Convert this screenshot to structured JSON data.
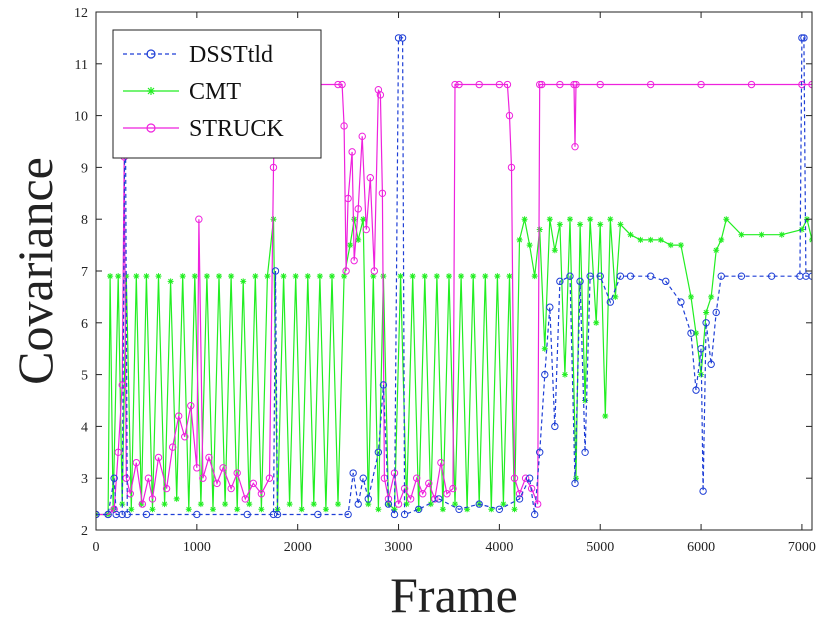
{
  "chart_data": {
    "type": "line",
    "title": "",
    "xlabel": "Frame",
    "ylabel": "Covariance",
    "xlim": [
      0,
      7100
    ],
    "ylim": [
      2,
      12
    ],
    "x_ticks": [
      0,
      1000,
      2000,
      3000,
      4000,
      5000,
      6000,
      7000
    ],
    "y_ticks": [
      2,
      3,
      4,
      5,
      6,
      7,
      8,
      9,
      10,
      11,
      12
    ],
    "legend_position": "top-left",
    "grid": false,
    "series": [
      {
        "name": "DSSTtld",
        "color": "#1f3fd6",
        "marker": "circle",
        "linestyle": "dashed",
        "points": [
          [
            0,
            2.3
          ],
          [
            120,
            2.3
          ],
          [
            180,
            3.0
          ],
          [
            200,
            2.3
          ],
          [
            260,
            2.3
          ],
          [
            290,
            11.0
          ],
          [
            310,
            2.3
          ],
          [
            500,
            2.3
          ],
          [
            1000,
            2.3
          ],
          [
            1500,
            2.3
          ],
          [
            1760,
            2.3
          ],
          [
            1780,
            7.0
          ],
          [
            1800,
            2.3
          ],
          [
            2200,
            2.3
          ],
          [
            2500,
            2.3
          ],
          [
            2550,
            3.1
          ],
          [
            2600,
            2.5
          ],
          [
            2650,
            3.0
          ],
          [
            2700,
            2.6
          ],
          [
            2800,
            3.5
          ],
          [
            2850,
            4.8
          ],
          [
            2900,
            2.5
          ],
          [
            2960,
            2.3
          ],
          [
            3000,
            11.5
          ],
          [
            3040,
            11.5
          ],
          [
            3060,
            2.3
          ],
          [
            3200,
            2.4
          ],
          [
            3400,
            2.6
          ],
          [
            3600,
            2.4
          ],
          [
            3800,
            2.5
          ],
          [
            4000,
            2.4
          ],
          [
            4200,
            2.6
          ],
          [
            4300,
            3.0
          ],
          [
            4350,
            2.3
          ],
          [
            4400,
            3.5
          ],
          [
            4450,
            5.0
          ],
          [
            4500,
            6.3
          ],
          [
            4550,
            4.0
          ],
          [
            4600,
            6.8
          ],
          [
            4700,
            6.9
          ],
          [
            4750,
            2.9
          ],
          [
            4800,
            6.8
          ],
          [
            4850,
            3.5
          ],
          [
            4900,
            6.9
          ],
          [
            5000,
            6.9
          ],
          [
            5100,
            6.4
          ],
          [
            5200,
            6.9
          ],
          [
            5300,
            6.9
          ],
          [
            5500,
            6.9
          ],
          [
            5650,
            6.8
          ],
          [
            5800,
            6.4
          ],
          [
            5900,
            5.8
          ],
          [
            5950,
            4.7
          ],
          [
            6000,
            5.5
          ],
          [
            6020,
            2.75
          ],
          [
            6050,
            6.0
          ],
          [
            6100,
            5.2
          ],
          [
            6150,
            6.2
          ],
          [
            6200,
            6.9
          ],
          [
            6400,
            6.9
          ],
          [
            6700,
            6.9
          ],
          [
            6980,
            6.9
          ],
          [
            7000,
            11.5
          ],
          [
            7020,
            11.5
          ],
          [
            7040,
            6.9
          ],
          [
            7100,
            6.9
          ]
        ]
      },
      {
        "name": "CMT",
        "color": "#22ee22",
        "marker": "asterisk",
        "linestyle": "solid",
        "points": [
          [
            0,
            2.3
          ],
          [
            120,
            2.3
          ],
          [
            140,
            6.9
          ],
          [
            170,
            2.4
          ],
          [
            220,
            6.9
          ],
          [
            260,
            2.5
          ],
          [
            300,
            6.9
          ],
          [
            350,
            2.4
          ],
          [
            400,
            6.9
          ],
          [
            450,
            2.5
          ],
          [
            500,
            6.9
          ],
          [
            560,
            2.4
          ],
          [
            620,
            6.9
          ],
          [
            680,
            2.5
          ],
          [
            740,
            6.8
          ],
          [
            800,
            2.6
          ],
          [
            860,
            6.9
          ],
          [
            920,
            2.4
          ],
          [
            980,
            6.9
          ],
          [
            1040,
            2.5
          ],
          [
            1100,
            6.9
          ],
          [
            1160,
            2.4
          ],
          [
            1220,
            6.9
          ],
          [
            1280,
            2.5
          ],
          [
            1340,
            6.9
          ],
          [
            1400,
            2.4
          ],
          [
            1460,
            6.8
          ],
          [
            1520,
            2.5
          ],
          [
            1580,
            6.9
          ],
          [
            1640,
            2.4
          ],
          [
            1700,
            6.9
          ],
          [
            1760,
            8.0
          ],
          [
            1800,
            2.4
          ],
          [
            1860,
            6.9
          ],
          [
            1920,
            2.5
          ],
          [
            1980,
            6.9
          ],
          [
            2040,
            2.4
          ],
          [
            2100,
            6.9
          ],
          [
            2160,
            2.5
          ],
          [
            2220,
            6.9
          ],
          [
            2280,
            2.4
          ],
          [
            2340,
            6.9
          ],
          [
            2400,
            2.5
          ],
          [
            2460,
            6.9
          ],
          [
            2520,
            7.5
          ],
          [
            2560,
            8.0
          ],
          [
            2600,
            7.6
          ],
          [
            2650,
            8.0
          ],
          [
            2700,
            2.5
          ],
          [
            2750,
            6.9
          ],
          [
            2800,
            2.4
          ],
          [
            2850,
            6.9
          ],
          [
            2900,
            2.5
          ],
          [
            2960,
            2.4
          ],
          [
            3020,
            6.9
          ],
          [
            3080,
            2.5
          ],
          [
            3140,
            6.9
          ],
          [
            3200,
            2.4
          ],
          [
            3260,
            6.9
          ],
          [
            3320,
            2.5
          ],
          [
            3380,
            6.9
          ],
          [
            3440,
            2.4
          ],
          [
            3500,
            6.9
          ],
          [
            3560,
            2.5
          ],
          [
            3620,
            6.9
          ],
          [
            3680,
            2.4
          ],
          [
            3740,
            6.9
          ],
          [
            3800,
            2.5
          ],
          [
            3860,
            6.9
          ],
          [
            3920,
            2.4
          ],
          [
            3980,
            6.9
          ],
          [
            4040,
            2.5
          ],
          [
            4100,
            6.9
          ],
          [
            4150,
            2.4
          ],
          [
            4200,
            7.6
          ],
          [
            4250,
            8.0
          ],
          [
            4300,
            7.5
          ],
          [
            4350,
            6.9
          ],
          [
            4400,
            7.8
          ],
          [
            4450,
            5.5
          ],
          [
            4500,
            8.0
          ],
          [
            4550,
            7.4
          ],
          [
            4600,
            7.9
          ],
          [
            4650,
            5.0
          ],
          [
            4700,
            8.0
          ],
          [
            4760,
            3.0
          ],
          [
            4800,
            7.9
          ],
          [
            4850,
            4.5
          ],
          [
            4900,
            8.0
          ],
          [
            4960,
            6.0
          ],
          [
            5000,
            7.9
          ],
          [
            5050,
            4.2
          ],
          [
            5100,
            8.0
          ],
          [
            5150,
            6.5
          ],
          [
            5200,
            7.9
          ],
          [
            5300,
            7.7
          ],
          [
            5400,
            7.6
          ],
          [
            5500,
            7.6
          ],
          [
            5600,
            7.6
          ],
          [
            5700,
            7.5
          ],
          [
            5800,
            7.5
          ],
          [
            5900,
            6.5
          ],
          [
            5950,
            5.8
          ],
          [
            6000,
            5.0
          ],
          [
            6050,
            6.2
          ],
          [
            6100,
            6.5
          ],
          [
            6150,
            7.4
          ],
          [
            6200,
            7.6
          ],
          [
            6250,
            8.0
          ],
          [
            6400,
            7.7
          ],
          [
            6600,
            7.7
          ],
          [
            6800,
            7.7
          ],
          [
            7000,
            7.8
          ],
          [
            7050,
            8.0
          ],
          [
            7100,
            7.6
          ]
        ]
      },
      {
        "name": "STRUCK",
        "color": "#ee22dd",
        "marker": "circle",
        "linestyle": "solid",
        "points": [
          [
            0,
            2.3
          ],
          [
            120,
            2.3
          ],
          [
            180,
            2.4
          ],
          [
            220,
            3.5
          ],
          [
            260,
            4.8
          ],
          [
            280,
            9.2
          ],
          [
            300,
            3.0
          ],
          [
            340,
            2.7
          ],
          [
            400,
            3.3
          ],
          [
            460,
            2.5
          ],
          [
            520,
            3.0
          ],
          [
            560,
            2.6
          ],
          [
            620,
            3.4
          ],
          [
            700,
            2.8
          ],
          [
            760,
            3.6
          ],
          [
            820,
            4.2
          ],
          [
            880,
            3.8
          ],
          [
            940,
            4.4
          ],
          [
            1000,
            3.2
          ],
          [
            1020,
            8.0
          ],
          [
            1060,
            3.0
          ],
          [
            1120,
            3.4
          ],
          [
            1200,
            2.9
          ],
          [
            1260,
            3.2
          ],
          [
            1340,
            2.8
          ],
          [
            1400,
            3.1
          ],
          [
            1480,
            2.6
          ],
          [
            1560,
            2.9
          ],
          [
            1640,
            2.7
          ],
          [
            1720,
            3.0
          ],
          [
            1760,
            9.0
          ],
          [
            1780,
            10.6
          ],
          [
            1800,
            10.6
          ],
          [
            2000,
            10.6
          ],
          [
            2200,
            10.6
          ],
          [
            2400,
            10.6
          ],
          [
            2440,
            10.6
          ],
          [
            2460,
            9.8
          ],
          [
            2480,
            7.0
          ],
          [
            2500,
            8.4
          ],
          [
            2540,
            9.3
          ],
          [
            2560,
            7.2
          ],
          [
            2600,
            8.2
          ],
          [
            2640,
            9.6
          ],
          [
            2680,
            7.8
          ],
          [
            2720,
            8.8
          ],
          [
            2760,
            7.0
          ],
          [
            2800,
            10.5
          ],
          [
            2820,
            10.4
          ],
          [
            2840,
            8.5
          ],
          [
            2860,
            3.0
          ],
          [
            2900,
            2.6
          ],
          [
            2960,
            3.1
          ],
          [
            3000,
            2.5
          ],
          [
            3060,
            2.8
          ],
          [
            3120,
            2.6
          ],
          [
            3180,
            3.0
          ],
          [
            3240,
            2.7
          ],
          [
            3300,
            2.9
          ],
          [
            3360,
            2.6
          ],
          [
            3420,
            3.3
          ],
          [
            3480,
            2.7
          ],
          [
            3540,
            2.8
          ],
          [
            3560,
            10.6
          ],
          [
            3600,
            10.6
          ],
          [
            3800,
            10.6
          ],
          [
            4000,
            10.6
          ],
          [
            4080,
            10.6
          ],
          [
            4100,
            10.0
          ],
          [
            4120,
            9.0
          ],
          [
            4150,
            3.0
          ],
          [
            4200,
            2.7
          ],
          [
            4260,
            3.0
          ],
          [
            4320,
            2.8
          ],
          [
            4380,
            2.5
          ],
          [
            4400,
            10.6
          ],
          [
            4420,
            10.6
          ],
          [
            4600,
            10.6
          ],
          [
            4740,
            10.6
          ],
          [
            4750,
            9.4
          ],
          [
            4760,
            10.6
          ],
          [
            5000,
            10.6
          ],
          [
            5500,
            10.6
          ],
          [
            6000,
            10.6
          ],
          [
            6500,
            10.6
          ],
          [
            7000,
            10.6
          ],
          [
            7100,
            10.6
          ]
        ]
      }
    ]
  }
}
